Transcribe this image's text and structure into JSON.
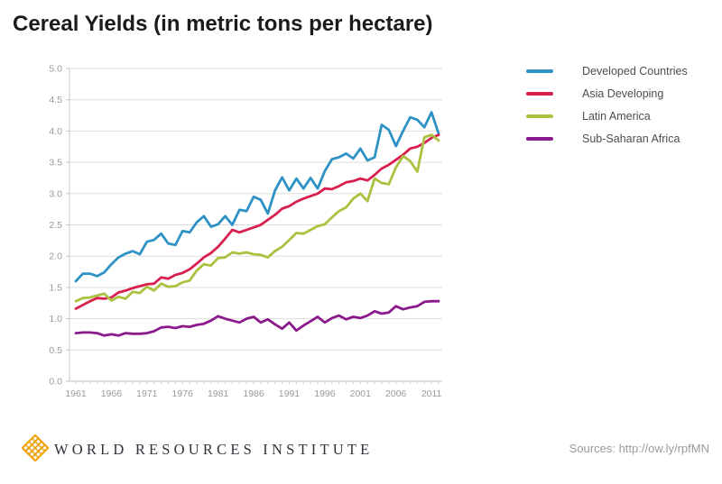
{
  "chart_data": {
    "type": "line",
    "title": "Cereal Yields (in metric tons per hectare)",
    "xlabel": "",
    "ylabel": "",
    "ylim": [
      0,
      5
    ],
    "ytick_step": 0.5,
    "grid": true,
    "legend_position": "right",
    "xticks": [
      1961,
      1966,
      1971,
      1976,
      1981,
      1986,
      1991,
      1996,
      2001,
      2006,
      2011
    ],
    "x": [
      1961,
      1962,
      1963,
      1964,
      1965,
      1966,
      1967,
      1968,
      1969,
      1970,
      1971,
      1972,
      1973,
      1974,
      1975,
      1976,
      1977,
      1978,
      1979,
      1980,
      1981,
      1982,
      1983,
      1984,
      1985,
      1986,
      1987,
      1988,
      1989,
      1990,
      1991,
      1992,
      1993,
      1994,
      1995,
      1996,
      1997,
      1998,
      1999,
      2000,
      2001,
      2002,
      2003,
      2004,
      2005,
      2006,
      2007,
      2008,
      2009,
      2010,
      2011,
      2012
    ],
    "series": [
      {
        "name": "Developed Countries",
        "color": "#2E92C5",
        "values": [
          1.6,
          1.72,
          1.72,
          1.68,
          1.74,
          1.87,
          1.98,
          2.04,
          2.08,
          2.03,
          2.23,
          2.26,
          2.36,
          2.2,
          2.18,
          2.4,
          2.38,
          2.54,
          2.64,
          2.47,
          2.51,
          2.64,
          2.5,
          2.74,
          2.72,
          2.95,
          2.9,
          2.68,
          3.05,
          3.26,
          3.05,
          3.24,
          3.08,
          3.25,
          3.08,
          3.36,
          3.55,
          3.58,
          3.64,
          3.56,
          3.72,
          3.53,
          3.58,
          4.1,
          4.02,
          3.76,
          4.0,
          4.22,
          4.18,
          4.06,
          4.3,
          3.96
        ]
      },
      {
        "name": "Asia Developing",
        "color": "#D81F4D",
        "values": [
          1.16,
          1.22,
          1.28,
          1.33,
          1.32,
          1.34,
          1.42,
          1.45,
          1.49,
          1.52,
          1.55,
          1.56,
          1.66,
          1.64,
          1.7,
          1.73,
          1.79,
          1.88,
          1.98,
          2.05,
          2.15,
          2.28,
          2.42,
          2.38,
          2.42,
          2.46,
          2.5,
          2.58,
          2.66,
          2.76,
          2.8,
          2.87,
          2.92,
          2.96,
          3.0,
          3.08,
          3.07,
          3.12,
          3.18,
          3.2,
          3.24,
          3.21,
          3.3,
          3.4,
          3.46,
          3.54,
          3.62,
          3.72,
          3.75,
          3.81,
          3.89,
          3.94
        ]
      },
      {
        "name": "Latin America",
        "color": "#A9C23F",
        "values": [
          1.28,
          1.33,
          1.34,
          1.37,
          1.4,
          1.29,
          1.35,
          1.32,
          1.43,
          1.41,
          1.51,
          1.45,
          1.56,
          1.51,
          1.52,
          1.58,
          1.61,
          1.77,
          1.87,
          1.85,
          1.97,
          1.98,
          2.06,
          2.04,
          2.06,
          2.03,
          2.02,
          1.98,
          2.08,
          2.15,
          2.26,
          2.37,
          2.36,
          2.42,
          2.48,
          2.51,
          2.62,
          2.72,
          2.78,
          2.92,
          3.0,
          2.88,
          3.24,
          3.17,
          3.15,
          3.42,
          3.6,
          3.52,
          3.35,
          3.9,
          3.94,
          3.85
        ]
      },
      {
        "name": "Sub-Saharan Africa",
        "color": "#8B1A8C",
        "values": [
          0.77,
          0.78,
          0.78,
          0.77,
          0.73,
          0.75,
          0.73,
          0.77,
          0.76,
          0.76,
          0.77,
          0.8,
          0.86,
          0.87,
          0.85,
          0.88,
          0.87,
          0.9,
          0.92,
          0.97,
          1.04,
          1.0,
          0.97,
          0.94,
          1.0,
          1.03,
          0.94,
          0.99,
          0.91,
          0.84,
          0.94,
          0.81,
          0.89,
          0.96,
          1.03,
          0.94,
          1.01,
          1.05,
          0.99,
          1.03,
          1.01,
          1.05,
          1.12,
          1.08,
          1.1,
          1.2,
          1.15,
          1.18,
          1.2,
          1.27,
          1.28,
          1.28
        ]
      }
    ]
  },
  "footer": {
    "org": "WORLD RESOURCES INSTITUTE",
    "sources": "Sources: http://ow.ly/rpfMN",
    "logo_color": "#F2A50C"
  }
}
